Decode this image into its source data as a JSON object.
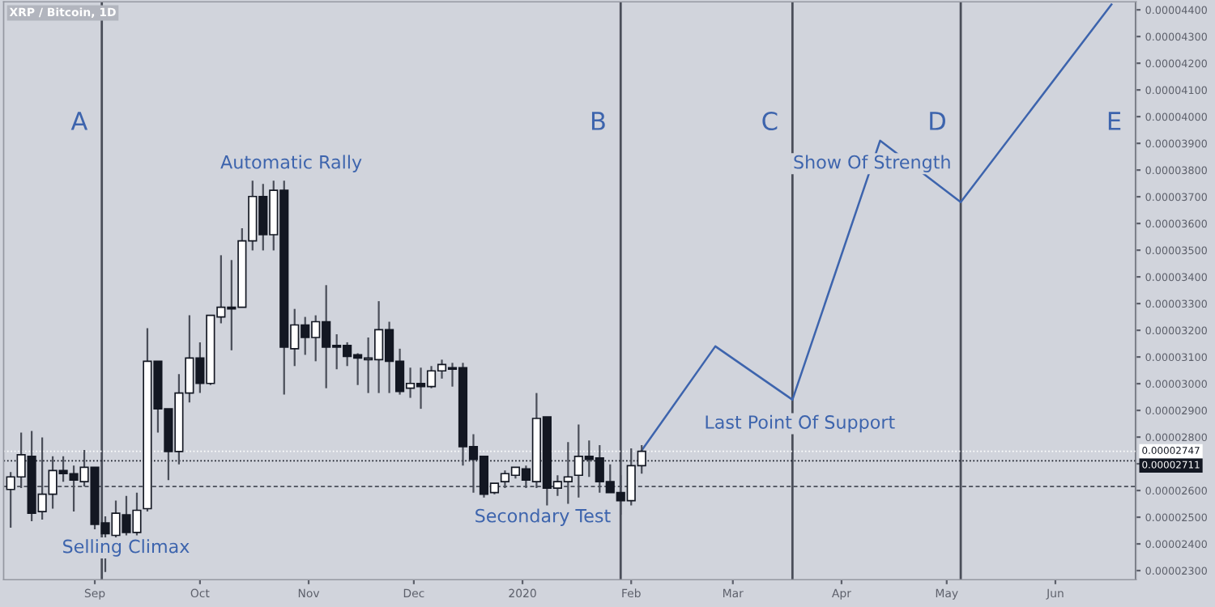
{
  "chart_data": {
    "type": "candlestick",
    "title": "XRP / Bitcoin, 1D",
    "x": [
      "2019-08-08",
      "2019-08-11",
      "2019-08-14",
      "2019-08-17",
      "2019-08-20",
      "2019-08-23",
      "2019-08-26",
      "2019-08-29",
      "2019-09-01",
      "2019-09-04",
      "2019-09-07",
      "2019-09-10",
      "2019-09-13",
      "2019-09-16",
      "2019-09-19",
      "2019-09-22",
      "2019-09-25",
      "2019-09-28",
      "2019-10-01",
      "2019-10-04",
      "2019-10-07",
      "2019-10-10",
      "2019-10-13",
      "2019-10-16",
      "2019-10-19",
      "2019-10-22",
      "2019-10-25",
      "2019-10-28",
      "2019-10-31",
      "2019-11-03",
      "2019-11-06",
      "2019-11-09",
      "2019-11-12",
      "2019-11-15",
      "2019-11-18",
      "2019-11-21",
      "2019-11-24",
      "2019-11-27",
      "2019-11-30",
      "2019-12-03",
      "2019-12-06",
      "2019-12-09",
      "2019-12-12",
      "2019-12-15",
      "2019-12-18",
      "2019-12-21",
      "2019-12-24",
      "2019-12-27",
      "2019-12-30",
      "2020-01-02",
      "2020-01-05",
      "2020-01-08",
      "2020-01-11",
      "2020-01-14",
      "2020-01-17",
      "2020-01-20",
      "2020-01-23",
      "2020-01-26",
      "2020-01-29",
      "2020-02-01",
      "2020-02-04"
    ],
    "ohlc": [
      [
        2.604e-05,
        2.669e-05,
        2.461e-05,
        2.651e-05
      ],
      [
        2.651e-05,
        2.817e-05,
        2.609e-05,
        2.734e-05
      ],
      [
        2.728e-05,
        2.823e-05,
        2.485e-05,
        2.515e-05
      ],
      [
        2.521e-05,
        2.799e-05,
        2.491e-05,
        2.586e-05
      ],
      [
        2.586e-05,
        2.728e-05,
        2.532e-05,
        2.675e-05
      ],
      [
        2.675e-05,
        2.728e-05,
        2.633e-05,
        2.663e-05
      ],
      [
        2.663e-05,
        2.693e-05,
        2.521e-05,
        2.639e-05
      ],
      [
        2.633e-05,
        2.752e-05,
        2.615e-05,
        2.687e-05
      ],
      [
        2.687e-05,
        2.687e-05,
        2.455e-05,
        2.473e-05
      ],
      [
        2.479e-05,
        2.503e-05,
        2.295e-05,
        2.438e-05
      ],
      [
        2.432e-05,
        2.562e-05,
        2.414e-05,
        2.515e-05
      ],
      [
        2.509e-05,
        2.58e-05,
        2.432e-05,
        2.443e-05
      ],
      [
        2.443e-05,
        2.592e-05,
        2.432e-05,
        2.526e-05
      ],
      [
        2.532e-05,
        3.208e-05,
        2.521e-05,
        3.084e-05
      ],
      [
        3.084e-05,
        3.084e-05,
        2.817e-05,
        2.906e-05
      ],
      [
        2.906e-05,
        2.906e-05,
        2.639e-05,
        2.746e-05
      ],
      [
        2.746e-05,
        3.036e-05,
        2.698e-05,
        2.965e-05
      ],
      [
        2.965e-05,
        3.256e-05,
        2.93e-05,
        3.096e-05
      ],
      [
        3.096e-05,
        3.155e-05,
        2.965e-05,
        3.001e-05
      ],
      [
        3.001e-05,
        3.256e-05,
        2.995e-05,
        3.256e-05
      ],
      [
        3.25e-05,
        3.481e-05,
        3.226e-05,
        3.286e-05
      ],
      [
        3.286e-05,
        3.463e-05,
        3.125e-05,
        3.28e-05
      ],
      [
        3.286e-05,
        3.582e-05,
        3.286e-05,
        3.535e-05
      ],
      [
        3.535e-05,
        3.76e-05,
        3.499e-05,
        3.701e-05
      ],
      [
        3.701e-05,
        3.748e-05,
        3.499e-05,
        3.558e-05
      ],
      [
        3.558e-05,
        3.76e-05,
        3.499e-05,
        3.724e-05
      ],
      [
        3.724e-05,
        3.76e-05,
        2.959e-05,
        3.137e-05
      ],
      [
        3.131e-05,
        3.28e-05,
        3.066e-05,
        3.22e-05
      ],
      [
        3.22e-05,
        3.25e-05,
        3.108e-05,
        3.173e-05
      ],
      [
        3.173e-05,
        3.256e-05,
        3.084e-05,
        3.232e-05
      ],
      [
        3.232e-05,
        3.369e-05,
        2.983e-05,
        3.137e-05
      ],
      [
        3.143e-05,
        3.185e-05,
        3.054e-05,
        3.137e-05
      ],
      [
        3.143e-05,
        3.155e-05,
        3.066e-05,
        3.102e-05
      ],
      [
        3.108e-05,
        3.114e-05,
        2.995e-05,
        3.096e-05
      ],
      [
        3.09e-05,
        3.173e-05,
        2.965e-05,
        3.096e-05
      ],
      [
        3.09e-05,
        3.309e-05,
        2.965e-05,
        3.202e-05
      ],
      [
        3.202e-05,
        3.232e-05,
        2.965e-05,
        3.084e-05
      ],
      [
        3.084e-05,
        3.131e-05,
        2.959e-05,
        2.971e-05
      ],
      [
        2.983e-05,
        3.06e-05,
        2.947e-05,
        3.001e-05
      ],
      [
        3.001e-05,
        3.06e-05,
        2.906e-05,
        2.989e-05
      ],
      [
        2.989e-05,
        3.066e-05,
        2.983e-05,
        3.048e-05
      ],
      [
        3.048e-05,
        3.09e-05,
        3.019e-05,
        3.072e-05
      ],
      [
        3.06e-05,
        3.078e-05,
        2.989e-05,
        3.054e-05
      ],
      [
        3.06e-05,
        3.078e-05,
        2.693e-05,
        2.764e-05
      ],
      [
        2.764e-05,
        2.811e-05,
        2.592e-05,
        2.716e-05
      ],
      [
        2.728e-05,
        2.728e-05,
        2.574e-05,
        2.586e-05
      ],
      [
        2.592e-05,
        2.627e-05,
        2.586e-05,
        2.627e-05
      ],
      [
        2.633e-05,
        2.675e-05,
        2.609e-05,
        2.663e-05
      ],
      [
        2.657e-05,
        2.687e-05,
        2.645e-05,
        2.687e-05
      ],
      [
        2.681e-05,
        2.693e-05,
        2.609e-05,
        2.639e-05
      ],
      [
        2.633e-05,
        2.965e-05,
        2.609e-05,
        2.87e-05
      ],
      [
        2.876e-05,
        2.876e-05,
        2.544e-05,
        2.609e-05
      ],
      [
        2.609e-05,
        2.657e-05,
        2.58e-05,
        2.633e-05
      ],
      [
        2.633e-05,
        2.781e-05,
        2.55e-05,
        2.651e-05
      ],
      [
        2.657e-05,
        2.847e-05,
        2.574e-05,
        2.728e-05
      ],
      [
        2.728e-05,
        2.787e-05,
        2.651e-05,
        2.716e-05
      ],
      [
        2.722e-05,
        2.77e-05,
        2.592e-05,
        2.633e-05
      ],
      [
        2.633e-05,
        2.698e-05,
        2.592e-05,
        2.592e-05
      ],
      [
        2.592e-05,
        2.657e-05,
        2.509e-05,
        2.562e-05
      ],
      [
        2.562e-05,
        2.758e-05,
        2.544e-05,
        2.693e-05
      ],
      [
        2.693e-05,
        2.77e-05,
        2.663e-05,
        2.747e-05
      ]
    ],
    "colors": [
      "#ffffff",
      "#ffffff",
      "#131722",
      "#ffffff",
      "#ffffff",
      "#131722",
      "#131722",
      "#ffffff",
      "#131722",
      "#131722",
      "#ffffff",
      "#131722",
      "#ffffff",
      "#ffffff",
      "#131722",
      "#131722",
      "#ffffff",
      "#ffffff",
      "#131722",
      "#ffffff",
      "#ffffff",
      "#131722",
      "#ffffff",
      "#ffffff",
      "#131722",
      "#ffffff",
      "#131722",
      "#ffffff",
      "#131722",
      "#ffffff",
      "#131722",
      "#131722",
      "#131722",
      "#131722",
      "#ffffff",
      "#ffffff",
      "#131722",
      "#131722",
      "#ffffff",
      "#131722",
      "#ffffff",
      "#ffffff",
      "#131722",
      "#131722",
      "#131722",
      "#131722",
      "#ffffff",
      "#ffffff",
      "#ffffff",
      "#131722",
      "#ffffff",
      "#131722",
      "#ffffff",
      "#ffffff",
      "#ffffff",
      "#131722",
      "#131722",
      "#131722",
      "#131722",
      "#ffffff",
      "#ffffff"
    ],
    "series": [
      {
        "type": "line",
        "color": "#3d64ad",
        "x": [
          "2020-02-04",
          "2020-02-25",
          "2020-03-18",
          "2020-04-12",
          "2020-05-05",
          "2020-06-17"
        ],
        "values": [
          2.75e-05,
          3.14e-05,
          2.94e-05,
          3.91e-05,
          3.68e-05,
          4.42e-05
        ]
      }
    ],
    "xlim": [
      "2019-08-06",
      "2020-06-24"
    ],
    "xticks": [
      {
        "value": "2019-09-01",
        "label": "Sep"
      },
      {
        "value": "2019-10-01",
        "label": "Oct"
      },
      {
        "value": "2019-11-01",
        "label": "Nov"
      },
      {
        "value": "2019-12-01",
        "label": "Dec"
      },
      {
        "value": "2020-01-01",
        "label": "2020"
      },
      {
        "value": "2020-02-01",
        "label": "Feb"
      },
      {
        "value": "2020-03-01",
        "label": "Mar"
      },
      {
        "value": "2020-04-01",
        "label": "Apr"
      },
      {
        "value": "2020-05-01",
        "label": "May"
      },
      {
        "value": "2020-06-01",
        "label": "Jun"
      }
    ],
    "ylim": [
      2.266e-05,
      4.43e-05
    ],
    "yticks": [
      {
        "value": 2.3e-05,
        "label": "0.00002300"
      },
      {
        "value": 2.4e-05,
        "label": "0.00002400"
      },
      {
        "value": 2.5e-05,
        "label": "0.00002500"
      },
      {
        "value": 2.6e-05,
        "label": "0.00002600"
      },
      {
        "value": 2.7e-05,
        "label": null
      },
      {
        "value": 2.8e-05,
        "label": "0.00002800"
      },
      {
        "value": 2.9e-05,
        "label": "0.00002900"
      },
      {
        "value": 3e-05,
        "label": "0.00003000"
      },
      {
        "value": 3.1e-05,
        "label": "0.00003100"
      },
      {
        "value": 3.2e-05,
        "label": "0.00003200"
      },
      {
        "value": 3.3e-05,
        "label": "0.00003300"
      },
      {
        "value": 3.4e-05,
        "label": "0.00003400"
      },
      {
        "value": 3.5e-05,
        "label": "0.00003500"
      },
      {
        "value": 3.6e-05,
        "label": "0.00003600"
      },
      {
        "value": 3.7e-05,
        "label": "0.00003700"
      },
      {
        "value": 3.8e-05,
        "label": "0.00003800"
      },
      {
        "value": 3.9e-05,
        "label": "0.00003900"
      },
      {
        "value": 4e-05,
        "label": "0.00004000"
      },
      {
        "value": 4.1e-05,
        "label": "0.00004100"
      },
      {
        "value": 4.2e-05,
        "label": "0.00004200"
      },
      {
        "value": 4.3e-05,
        "label": "0.00004300"
      },
      {
        "value": 4.4e-05,
        "label": "0.00004400"
      }
    ],
    "ref_lines": [
      {
        "axis": "x",
        "value": "2019-09-03",
        "label": "A",
        "color": "#4a4e59",
        "line_style": "solid"
      },
      {
        "axis": "x",
        "value": "2020-01-29",
        "label": "B",
        "color": "#4a4e59",
        "line_style": "solid"
      },
      {
        "axis": "x",
        "value": "2020-03-18",
        "label": "C",
        "color": "#4a4e59",
        "line_style": "solid"
      },
      {
        "axis": "x",
        "value": "2020-05-05",
        "label": "D",
        "color": "#4a4e59",
        "line_style": "solid"
      },
      {
        "axis": "x",
        "value": "2020-06-24",
        "label": "E",
        "color": "#4a4e59",
        "line_style": "solid"
      },
      {
        "axis": "y",
        "value": 2.615e-05,
        "label": null,
        "color": "#4a4e59",
        "line_style": "dashed"
      },
      {
        "axis": "y",
        "value": 2.747e-05,
        "label": "0.00002747",
        "color": "#ffffff",
        "line_style": "dotted"
      },
      {
        "axis": "y",
        "value": 2.711e-05,
        "label": "0.00002711",
        "color": "#131722",
        "line_style": "dotted"
      }
    ],
    "annotations": [
      "Automatic Rally",
      "Selling Climax",
      "Secondary Test",
      "Last Point Of Support",
      "Show Of Strength"
    ],
    "grid": false,
    "legend": false
  }
}
